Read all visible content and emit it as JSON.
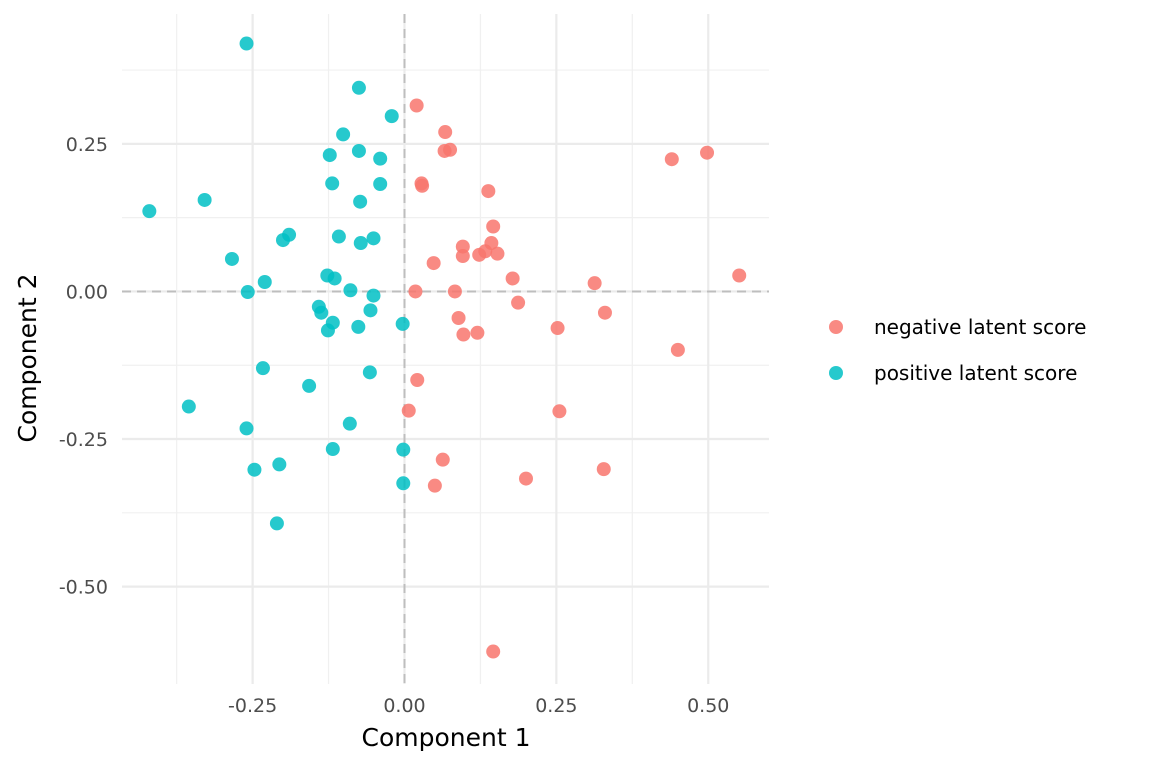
{
  "chart_data": {
    "type": "scatter",
    "xlabel": "Component 1",
    "ylabel": "Component 2",
    "xlim": [
      -0.465,
      0.6
    ],
    "ylim": [
      -0.665,
      0.47
    ],
    "x_ticks": [
      -0.25,
      0.0,
      0.25,
      0.5
    ],
    "x_tick_labels": [
      "-0.25",
      "0.00",
      "0.25",
      "0.50"
    ],
    "y_ticks": [
      -0.5,
      -0.25,
      0.0,
      0.25
    ],
    "y_tick_labels": [
      "-0.50",
      "-0.25",
      "0.00",
      "0.25"
    ],
    "x_minor_ticks": [
      -0.375,
      -0.125,
      0.125,
      0.375
    ],
    "y_minor_ticks": [
      -0.375,
      -0.125,
      0.125,
      0.375
    ],
    "grid": true,
    "reference_lines": {
      "x": 0,
      "y": 0
    },
    "legend_position": "right",
    "series": [
      {
        "name": "negative latent score",
        "color": "#F8766D",
        "points": [
          [
            0.02,
            0.315
          ],
          [
            0.067,
            0.27
          ],
          [
            0.066,
            0.238
          ],
          [
            0.075,
            0.24
          ],
          [
            0.028,
            0.183
          ],
          [
            0.029,
            0.179
          ],
          [
            0.138,
            0.17
          ],
          [
            0.146,
            0.11
          ],
          [
            0.096,
            0.076
          ],
          [
            0.096,
            0.06
          ],
          [
            0.123,
            0.062
          ],
          [
            0.133,
            0.068
          ],
          [
            0.143,
            0.082
          ],
          [
            0.153,
            0.064
          ],
          [
            0.048,
            0.048
          ],
          [
            0.178,
            0.022
          ],
          [
            0.018,
            0.0
          ],
          [
            0.083,
            0.0
          ],
          [
            0.187,
            -0.019
          ],
          [
            0.089,
            -0.045
          ],
          [
            0.097,
            -0.073
          ],
          [
            0.12,
            -0.07
          ],
          [
            0.252,
            -0.062
          ],
          [
            0.33,
            -0.036
          ],
          [
            0.313,
            0.014
          ],
          [
            0.44,
            0.224
          ],
          [
            0.498,
            0.235
          ],
          [
            0.551,
            0.027
          ],
          [
            0.45,
            -0.099
          ],
          [
            0.021,
            -0.15
          ],
          [
            0.007,
            -0.202
          ],
          [
            0.255,
            -0.203
          ],
          [
            0.063,
            -0.285
          ],
          [
            0.05,
            -0.329
          ],
          [
            0.2,
            -0.317
          ],
          [
            0.328,
            -0.301
          ],
          [
            0.146,
            -0.61
          ]
        ]
      },
      {
        "name": "positive latent score",
        "color": "#00BFC4",
        "points": [
          [
            -0.26,
            0.42
          ],
          [
            -0.075,
            0.345
          ],
          [
            -0.021,
            0.297
          ],
          [
            -0.101,
            0.266
          ],
          [
            -0.123,
            0.231
          ],
          [
            -0.075,
            0.238
          ],
          [
            -0.04,
            0.225
          ],
          [
            -0.119,
            0.183
          ],
          [
            -0.04,
            0.182
          ],
          [
            -0.073,
            0.152
          ],
          [
            -0.42,
            0.136
          ],
          [
            -0.329,
            0.155
          ],
          [
            -0.19,
            0.096
          ],
          [
            -0.2,
            0.087
          ],
          [
            -0.108,
            0.093
          ],
          [
            -0.072,
            0.082
          ],
          [
            -0.051,
            0.09
          ],
          [
            -0.284,
            0.055
          ],
          [
            -0.23,
            0.016
          ],
          [
            -0.258,
            -0.001
          ],
          [
            -0.127,
            0.027
          ],
          [
            -0.115,
            0.022
          ],
          [
            -0.089,
            0.002
          ],
          [
            -0.051,
            -0.007
          ],
          [
            -0.141,
            -0.026
          ],
          [
            -0.137,
            -0.036
          ],
          [
            -0.118,
            -0.053
          ],
          [
            -0.056,
            -0.032
          ],
          [
            -0.076,
            -0.06
          ],
          [
            -0.003,
            -0.055
          ],
          [
            -0.126,
            -0.066
          ],
          [
            -0.057,
            -0.137
          ],
          [
            -0.233,
            -0.13
          ],
          [
            -0.157,
            -0.16
          ],
          [
            -0.355,
            -0.195
          ],
          [
            -0.26,
            -0.232
          ],
          [
            -0.09,
            -0.224
          ],
          [
            -0.118,
            -0.267
          ],
          [
            -0.002,
            -0.268
          ],
          [
            -0.206,
            -0.293
          ],
          [
            -0.247,
            -0.302
          ],
          [
            -0.002,
            -0.325
          ],
          [
            -0.21,
            -0.393
          ]
        ]
      }
    ]
  }
}
